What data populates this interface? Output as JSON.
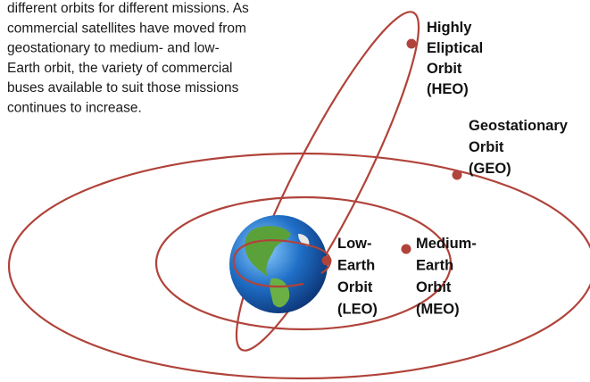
{
  "paragraph": [
    "different orbits for different missions. As",
    "commercial satellites have moved from",
    "geostationary to medium- and low-",
    "Earth orbit, the variety of commercial",
    "buses available to suit those missions",
    "continues to increase."
  ],
  "labels": [
    {
      "lines": [
        "Highly",
        "Eliptical",
        "Orbit",
        "(HEO)"
      ]
    },
    {
      "lines": [
        "Geostationary",
        "Orbit",
        "(GEO)"
      ]
    },
    {
      "lines": [
        "Low-",
        "Earth",
        "Orbit",
        "(LEO)"
      ]
    },
    {
      "lines": [
        "Medium-",
        "Earth",
        "Orbit",
        "(MEO)"
      ]
    }
  ]
}
